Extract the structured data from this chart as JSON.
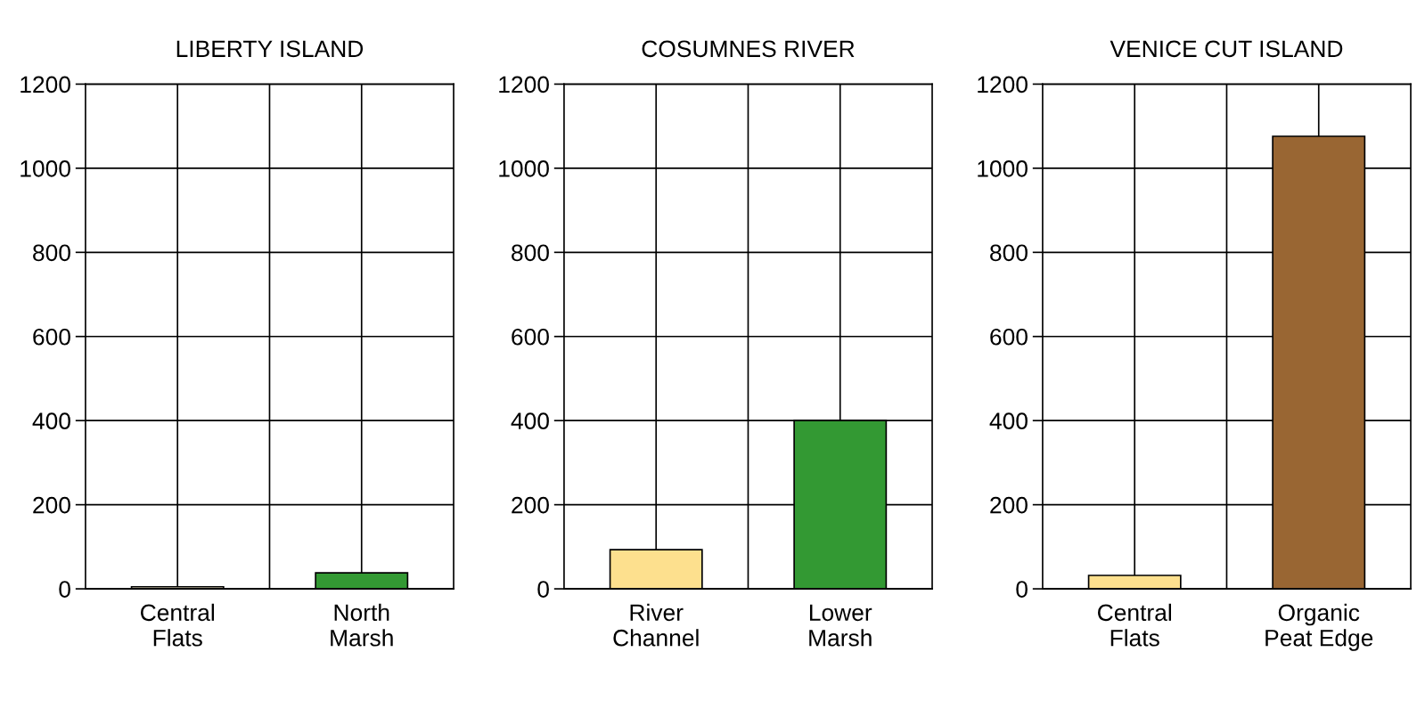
{
  "chart_data": [
    {
      "type": "bar",
      "title": "LIBERTY ISLAND",
      "categories": [
        "Central\nFlats",
        "North\nMarsh"
      ],
      "values": [
        5,
        38
      ],
      "colors": [
        "#fef3d2",
        "#339933"
      ],
      "ylim": [
        0,
        1200
      ],
      "yticks": [
        0,
        200,
        400,
        600,
        800,
        1000,
        1200
      ],
      "grid": true
    },
    {
      "type": "bar",
      "title": "COSUMNES RIVER",
      "categories": [
        "River\nChannel",
        "Lower\nMarsh"
      ],
      "values": [
        93,
        400
      ],
      "colors": [
        "#fde08e",
        "#339933"
      ],
      "ylim": [
        0,
        1200
      ],
      "yticks": [
        0,
        200,
        400,
        600,
        800,
        1000,
        1200
      ],
      "grid": true
    },
    {
      "type": "bar",
      "title": "VENICE CUT ISLAND",
      "categories": [
        "Central\nFlats",
        "Organic\nPeat Edge"
      ],
      "values": [
        32,
        1076
      ],
      "colors": [
        "#fde08e",
        "#996633"
      ],
      "ylim": [
        0,
        1200
      ],
      "yticks": [
        0,
        200,
        400,
        600,
        800,
        1000,
        1200
      ],
      "grid": true
    }
  ]
}
